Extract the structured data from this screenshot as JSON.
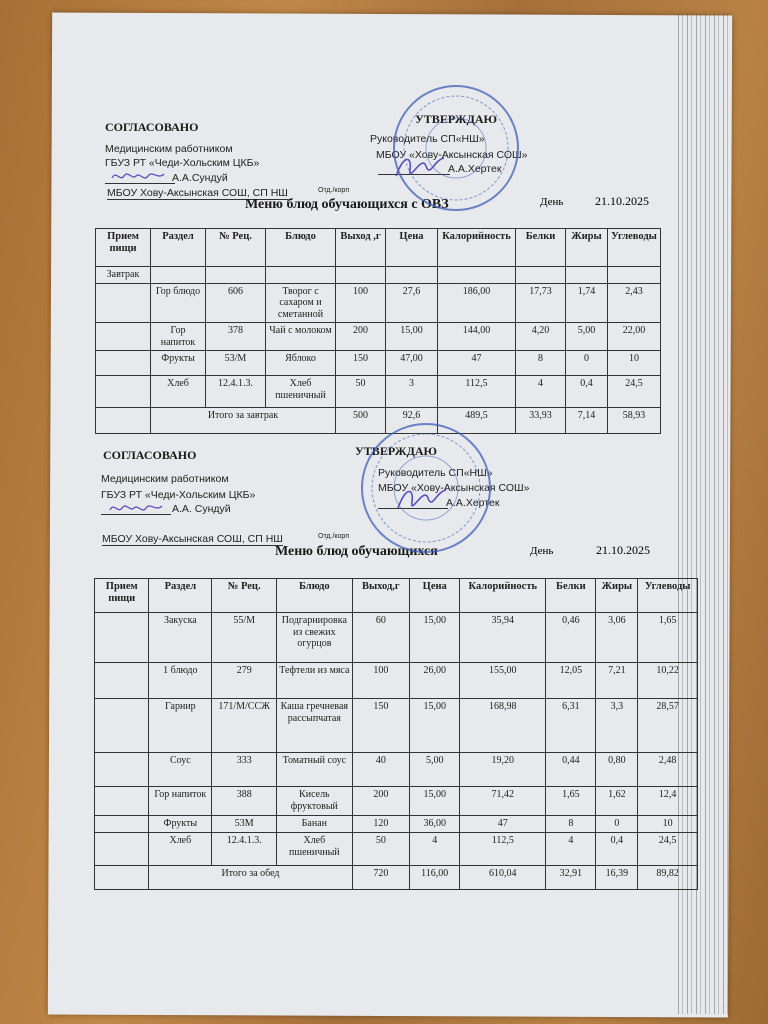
{
  "doc1": {
    "agreed": "СОГЛАСОВАНО",
    "approve": "УТВЕРЖДАЮ",
    "med1": "Медицинским работником",
    "med2": "ГБУЗ РТ «Чеди-Хольским ЦКБ»",
    "med_sign": "А.А.Сундуй",
    "head1": "Руководитель  СП«НШ»",
    "head2": "МБОУ «Хову-Аксынская СОШ»",
    "head_sign": "А.А.Хертек",
    "school": "МБОУ Хову-Аксынская СОШ, СП НШ",
    "dept": "Отд./корп",
    "title": "Меню блюд обучающихся с ОВЗ",
    "day_label": "День",
    "date": "21.10.2025",
    "headers": [
      "Прием пищи",
      "Раздел",
      "№ Рец.",
      "Блюдо",
      "Выход ,г",
      "Цена",
      "Калорийность",
      "Белки",
      "Жиры",
      "Углеводы"
    ],
    "meal": "Завтрак",
    "rows": [
      [
        "",
        "Гор блюдо",
        "606",
        "Творог с сахаром и сметанной",
        "100",
        "27,6",
        "186,00",
        "17,73",
        "1,74",
        "2,43"
      ],
      [
        "",
        "Гор напиток",
        "378",
        "Чай с молоком",
        "200",
        "15,00",
        "144,00",
        "4,20",
        "5,00",
        "22,00"
      ],
      [
        "",
        "Фрукты",
        "53/М",
        "Яблоко",
        "150",
        "47,00",
        "47",
        "8",
        "0",
        "10"
      ],
      [
        "",
        "Хлеб",
        "12.4.1.3.",
        "Хлеб пшеничный",
        "50",
        "3",
        "112,5",
        "4",
        "0,4",
        "24,5"
      ]
    ],
    "total": [
      "Итого за завтрак",
      "500",
      "92,6",
      "489,5",
      "33,93",
      "7,14",
      "58,93"
    ]
  },
  "doc2": {
    "agreed": "СОГЛАСОВАНО",
    "approve": "УТВЕРЖДАЮ",
    "med1": "Медицинским работником",
    "med2": "ГБУЗ РТ «Чеди-Хольским ЦКБ»",
    "med_sign": "А.А. Сундуй",
    "head1": "Руководитель СП«НШ»",
    "head2": "МБОУ «Хову-Аксынская СОШ»",
    "head_sign": "А.А.Хертек",
    "school": "МБОУ Хову-Аксынская СОШ, СП НШ",
    "dept": "Отд./корп",
    "title": "Меню блюд обучающихся",
    "day_label": "День",
    "date": "21.10.2025",
    "headers": [
      "Прием пищи",
      "Раздел",
      "№ Рец.",
      "Блюдо",
      "Выход,г",
      "Цена",
      "Калорийность",
      "Белки",
      "Жиры",
      "Углеводы"
    ],
    "rows": [
      [
        "",
        "Закуска",
        "55/М",
        "Подгарнировка из свежих огурцов",
        "60",
        "15,00",
        "35,94",
        "0,46",
        "3,06",
        "1,65"
      ],
      [
        "",
        "1 блюдо",
        "279",
        "Тефтели из мяса",
        "100",
        "26,00",
        "155,00",
        "12,05",
        "7,21",
        "10,22"
      ],
      [
        "",
        "Гарнир",
        "171/М/ССЖ",
        "Каша гречневая рассыпчатая",
        "150",
        "15,00",
        "168,98",
        "6,31",
        "3,3",
        "28,57"
      ],
      [
        "",
        "Соус",
        "333",
        "Томатный соус",
        "40",
        "5,00",
        "19,20",
        "0,44",
        "0,80",
        "2,48"
      ],
      [
        "",
        "Гор напиток",
        "388",
        "Кисель фруктовый",
        "200",
        "15,00",
        "71,42",
        "1,65",
        "1,62",
        "12,4"
      ],
      [
        "",
        "Фрукты",
        "53М",
        "Банан",
        "120",
        "36,00",
        "47",
        "8",
        "0",
        "10"
      ],
      [
        "",
        "Хлеб",
        "12.4.1.3.",
        "Хлеб пшеничный",
        "50",
        "4",
        "112,5",
        "4",
        "0,4",
        "24,5"
      ]
    ],
    "total": [
      "Итого за обед",
      "720",
      "116,00",
      "610,04",
      "32,91",
      "16,39",
      "89,82"
    ]
  },
  "colors": {
    "stamp": "#3d5fb8",
    "signature": "#5a4fc0",
    "ink": "#222222",
    "table_wood": "#b07a3e"
  }
}
